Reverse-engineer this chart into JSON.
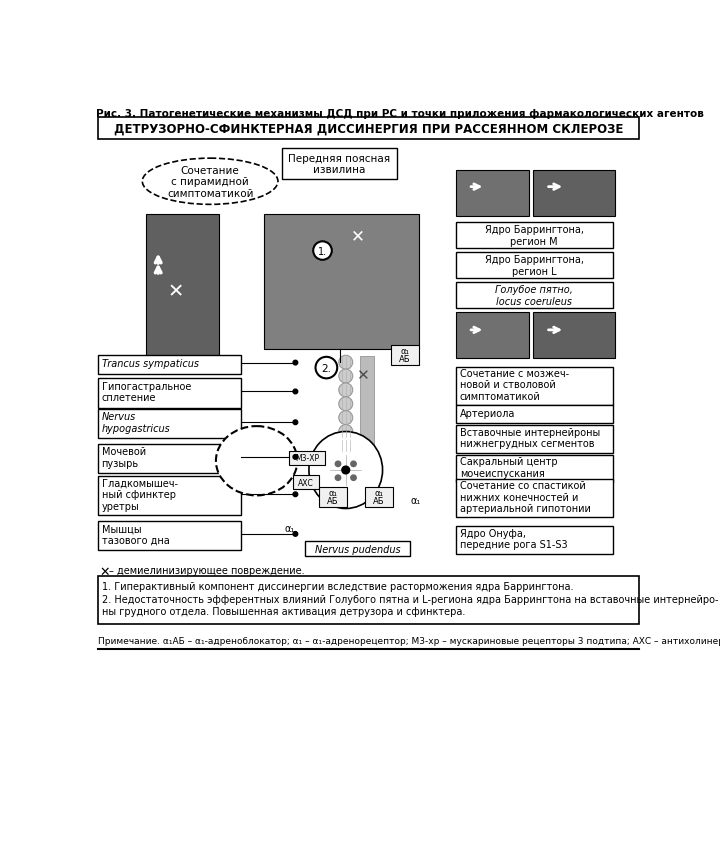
{
  "title": "Рис. 3. Патогенетические механизмы ДСД при РС и точки приложения фармакологических агентов",
  "main_title": "ДЕТРУЗОРНО-СФИНКТЕРНАЯ ДИССИНЕРГИЯ ПРИ РАССЕЯННОМ СКЛЕРОЗЕ",
  "ellipse_text": "Сочетание\nс пирамидной\nсимптоматикой",
  "label_anterior": "Передняя поясная\nизвилина",
  "label_barrington_M": "Ядро Баррингтона,\nрегион M",
  "label_barrington_L": "Ядро Баррингтона,\nрегион L",
  "label_locus": "Голубое пятно,\nlocus coeruleus",
  "label_trancus": "Trancus sympaticus",
  "label_hypogastric": "Гипогастральное\nсплетение",
  "label_nervus_hypo": "Nervus\nhypogastricus",
  "label_bladder": "Мочевой\nпузырь",
  "label_sphincter": "Гладкомышеч-\nный сфинктер\nуретры",
  "label_pelvic": "Мышцы\nтазового дна",
  "label_cerebellum": "Сочетание с мозжеч-\nновой и стволовой\nсимптоматикой",
  "label_arteriola": "Артериола",
  "label_interneurons": "Вставочные интернейроны\nнижнегрудных сегментов",
  "label_sacral": "Сакральный центр\nмочеиспускания",
  "label_spasticity": "Сочетание со спастикой\nнижних конечностей и\nартериальной гипотонии",
  "label_onuf": "Ядро Онуфа,\nпередние рога S1-S3",
  "label_nervus_pud": "Nervus pudendus",
  "label_demyelin": "– демиелинизирующее повреждение.",
  "footnote1": "1. Гиперактивный компонент диссинергии вследствие расторможения ядра Баррингтона.",
  "footnote2": "2. Недостаточность эфферентных влияний Голубого пятна и L-региона ядра Баррингтона на вставочные интернейро-\nны грудного отдела. Повышенная активация детрузора и сфинктера.",
  "footnote_note": "Примечание. α₁АБ – α₁-адреноблокатор; α₁ – α₁-адренорецептор; М3-хр – мускариновые рецепторы 3 подтипа; АХС – антихолинергические средства.",
  "bg_color": "#ffffff",
  "box_color": "#000000",
  "text_color": "#000000"
}
